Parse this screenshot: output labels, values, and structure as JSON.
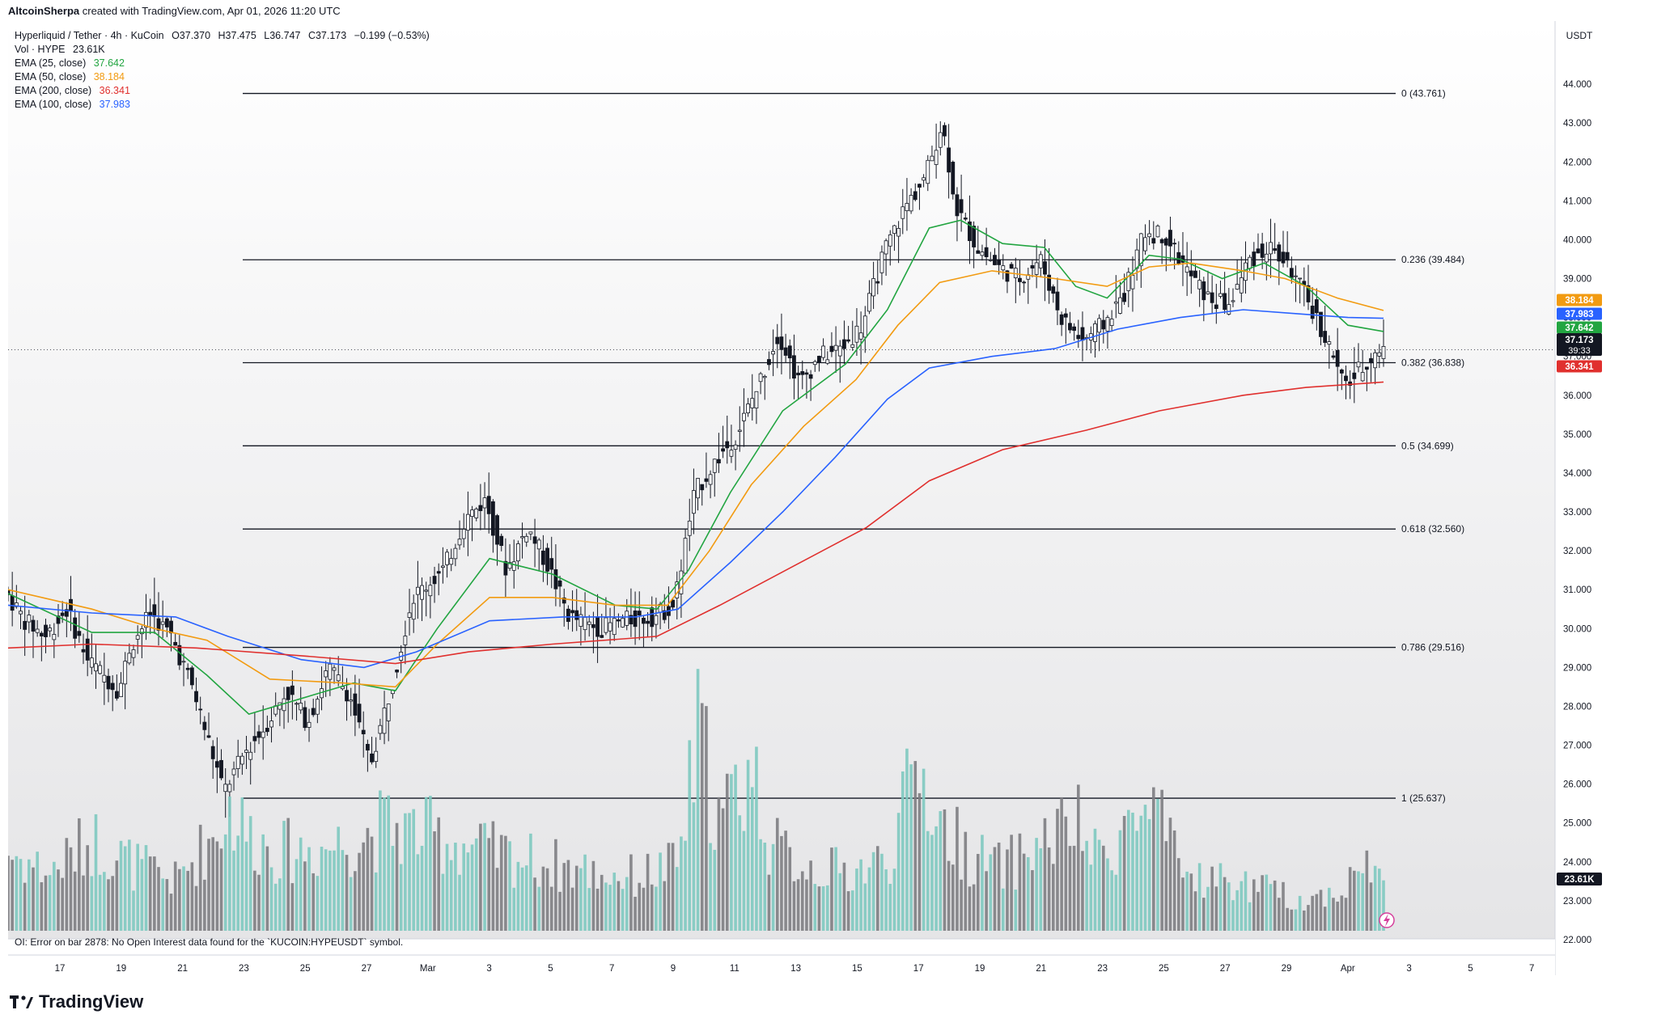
{
  "header": {
    "author": "AltcoinSherpa",
    "created_text": "created with TradingView.com, Apr 01, 2026 11:20 UTC"
  },
  "legend": {
    "symbol": "Hyperliquid / Tether · 4h · KuCoin",
    "ohlc": {
      "o": "O37.370",
      "h": "H37.475",
      "l": "L36.747",
      "c": "C37.173",
      "change": "−0.199 (−0.53%)"
    },
    "vol_label": "Vol · HYPE",
    "vol_value": "23.61K",
    "emas": [
      {
        "label": "EMA (25, close)",
        "value": "37.642",
        "color": "#22a541"
      },
      {
        "label": "EMA (50, close)",
        "value": "38.184",
        "color": "#f29b11"
      },
      {
        "label": "EMA (200, close)",
        "value": "36.341",
        "color": "#e0302e"
      },
      {
        "label": "EMA (100, close)",
        "value": "37.983",
        "color": "#2962ff"
      }
    ]
  },
  "oi_message": "OI: Error on bar 2878: No Open Interest data found for the `KUCOIN:HYPEUSDT` symbol.",
  "brand": "TradingView",
  "chart_data": {
    "type": "candlestick",
    "currency": "USDT",
    "ylim": [
      21.5,
      45.0
    ],
    "y_ticks": [
      "44.000",
      "43.000",
      "42.000",
      "41.000",
      "40.000",
      "39.000",
      "38.000",
      "37.000",
      "36.000",
      "35.000",
      "34.000",
      "33.000",
      "32.000",
      "31.000",
      "30.000",
      "29.000",
      "28.000",
      "27.000",
      "26.000",
      "25.000",
      "24.000",
      "23.000",
      "22.000"
    ],
    "x_ticks": [
      "17",
      "19",
      "21",
      "23",
      "25",
      "27",
      "Mar",
      "3",
      "5",
      "7",
      "9",
      "11",
      "13",
      "15",
      "17",
      "19",
      "21",
      "23",
      "25",
      "27",
      "29",
      "Apr",
      "3",
      "5",
      "7"
    ],
    "fib_levels": [
      {
        "label": "0 (43.761)",
        "value": 43.761
      },
      {
        "label": "0.236 (39.484)",
        "value": 39.484
      },
      {
        "label": "0.382 (36.838)",
        "value": 36.838
      },
      {
        "label": "0.5 (34.699)",
        "value": 34.699
      },
      {
        "label": "0.618 (32.560)",
        "value": 32.56
      },
      {
        "label": "0.786 (29.516)",
        "value": 29.516
      },
      {
        "label": "1 (25.637)",
        "value": 25.637
      }
    ],
    "price_tags": [
      {
        "text": "38.184",
        "value": 38.184,
        "color": "#f29b11"
      },
      {
        "text": "37.983",
        "value": 37.983,
        "color": "#2962ff"
      },
      {
        "text": "37.642",
        "value": 37.642,
        "color": "#22a541"
      },
      {
        "text": "37.173",
        "sub": "39:33",
        "value": 37.173,
        "color": "#131722"
      },
      {
        "text": "36.341",
        "value": 36.341,
        "color": "#e0302e"
      }
    ],
    "volume_tag": "23.61K",
    "price_path": [
      [
        0,
        31.0
      ],
      [
        10,
        30.2
      ],
      [
        20,
        29.8
      ],
      [
        30,
        30.5
      ],
      [
        40,
        29.2
      ],
      [
        55,
        28.4
      ],
      [
        60,
        29.5
      ],
      [
        70,
        30.4
      ],
      [
        80,
        29.8
      ],
      [
        90,
        28.5
      ],
      [
        105,
        25.8
      ],
      [
        115,
        26.8
      ],
      [
        125,
        27.5
      ],
      [
        135,
        28.4
      ],
      [
        145,
        27.6
      ],
      [
        155,
        29.0
      ],
      [
        165,
        28.3
      ],
      [
        175,
        26.5
      ],
      [
        185,
        28.5
      ],
      [
        195,
        30.8
      ],
      [
        210,
        31.5
      ],
      [
        220,
        32.8
      ],
      [
        230,
        33.3
      ],
      [
        240,
        31.5
      ],
      [
        250,
        32.6
      ],
      [
        260,
        31.6
      ],
      [
        270,
        30.3
      ],
      [
        285,
        30.0
      ],
      [
        295,
        30.2
      ],
      [
        310,
        30.3
      ],
      [
        320,
        30.6
      ],
      [
        330,
        33.5
      ],
      [
        340,
        34.3
      ],
      [
        350,
        35.0
      ],
      [
        360,
        36.2
      ],
      [
        370,
        37.6
      ],
      [
        380,
        36.3
      ],
      [
        390,
        37.0
      ],
      [
        400,
        37.2
      ],
      [
        410,
        37.8
      ],
      [
        420,
        39.6
      ],
      [
        430,
        40.8
      ],
      [
        440,
        41.6
      ],
      [
        448,
        43.0
      ],
      [
        455,
        40.8
      ],
      [
        465,
        39.8
      ],
      [
        475,
        39.3
      ],
      [
        485,
        39.0
      ],
      [
        495,
        39.5
      ],
      [
        505,
        38.0
      ],
      [
        515,
        37.4
      ],
      [
        525,
        37.8
      ],
      [
        535,
        38.6
      ],
      [
        545,
        40.2
      ],
      [
        555,
        40.1
      ],
      [
        565,
        39.2
      ],
      [
        575,
        38.5
      ],
      [
        585,
        38.3
      ],
      [
        595,
        39.5
      ],
      [
        605,
        39.8
      ],
      [
        615,
        39.2
      ],
      [
        625,
        38.2
      ],
      [
        635,
        37.0
      ],
      [
        640,
        36.2
      ],
      [
        650,
        36.8
      ],
      [
        657,
        37.17
      ]
    ],
    "volume_series": [
      [
        0,
        19
      ],
      [
        20,
        14
      ],
      [
        40,
        22
      ],
      [
        60,
        16
      ],
      [
        80,
        12
      ],
      [
        100,
        24
      ],
      [
        105,
        30
      ],
      [
        115,
        23
      ],
      [
        130,
        19
      ],
      [
        150,
        20
      ],
      [
        165,
        22
      ],
      [
        180,
        25
      ],
      [
        195,
        24
      ],
      [
        210,
        22
      ],
      [
        230,
        19
      ],
      [
        260,
        16
      ],
      [
        280,
        14
      ],
      [
        300,
        13
      ],
      [
        320,
        16
      ],
      [
        330,
        48
      ],
      [
        340,
        26
      ],
      [
        355,
        40
      ],
      [
        365,
        20
      ],
      [
        380,
        16
      ],
      [
        400,
        14
      ],
      [
        420,
        17
      ],
      [
        435,
        40
      ],
      [
        445,
        26
      ],
      [
        460,
        18
      ],
      [
        475,
        15
      ],
      [
        490,
        20
      ],
      [
        510,
        26
      ],
      [
        520,
        17
      ],
      [
        535,
        26
      ],
      [
        548,
        28
      ],
      [
        560,
        14
      ],
      [
        580,
        12
      ],
      [
        600,
        10
      ],
      [
        620,
        7
      ],
      [
        640,
        11
      ],
      [
        648,
        17
      ],
      [
        657,
        12
      ]
    ],
    "ema25": [
      [
        0,
        30.9
      ],
      [
        40,
        29.9
      ],
      [
        70,
        29.9
      ],
      [
        95,
        28.8
      ],
      [
        115,
        27.8
      ],
      [
        140,
        28.2
      ],
      [
        165,
        28.6
      ],
      [
        185,
        28.4
      ],
      [
        205,
        30.0
      ],
      [
        230,
        31.8
      ],
      [
        260,
        31.4
      ],
      [
        290,
        30.6
      ],
      [
        310,
        30.5
      ],
      [
        325,
        31.5
      ],
      [
        345,
        33.5
      ],
      [
        370,
        35.6
      ],
      [
        400,
        36.8
      ],
      [
        420,
        38.2
      ],
      [
        440,
        40.3
      ],
      [
        455,
        40.5
      ],
      [
        475,
        39.9
      ],
      [
        495,
        39.8
      ],
      [
        510,
        38.8
      ],
      [
        525,
        38.5
      ],
      [
        545,
        39.6
      ],
      [
        560,
        39.5
      ],
      [
        580,
        39.0
      ],
      [
        600,
        39.4
      ],
      [
        620,
        38.8
      ],
      [
        640,
        37.8
      ],
      [
        657,
        37.64
      ]
    ],
    "ema50": [
      [
        0,
        31.0
      ],
      [
        40,
        30.5
      ],
      [
        70,
        30.0
      ],
      [
        95,
        29.7
      ],
      [
        125,
        28.7
      ],
      [
        160,
        28.6
      ],
      [
        185,
        28.5
      ],
      [
        205,
        29.6
      ],
      [
        230,
        30.8
      ],
      [
        260,
        30.8
      ],
      [
        290,
        30.6
      ],
      [
        315,
        30.6
      ],
      [
        335,
        32.0
      ],
      [
        355,
        33.7
      ],
      [
        380,
        35.2
      ],
      [
        405,
        36.4
      ],
      [
        425,
        37.8
      ],
      [
        445,
        38.9
      ],
      [
        470,
        39.2
      ],
      [
        500,
        39.0
      ],
      [
        525,
        38.8
      ],
      [
        545,
        39.3
      ],
      [
        565,
        39.4
      ],
      [
        590,
        39.2
      ],
      [
        610,
        39.0
      ],
      [
        635,
        38.5
      ],
      [
        657,
        38.18
      ]
    ],
    "ema100": [
      [
        0,
        30.6
      ],
      [
        40,
        30.4
      ],
      [
        80,
        30.3
      ],
      [
        105,
        29.8
      ],
      [
        140,
        29.2
      ],
      [
        170,
        29.0
      ],
      [
        195,
        29.4
      ],
      [
        230,
        30.2
      ],
      [
        265,
        30.3
      ],
      [
        300,
        30.3
      ],
      [
        320,
        30.5
      ],
      [
        345,
        31.7
      ],
      [
        370,
        33.0
      ],
      [
        395,
        34.4
      ],
      [
        420,
        35.9
      ],
      [
        440,
        36.7
      ],
      [
        470,
        37.0
      ],
      [
        500,
        37.2
      ],
      [
        530,
        37.7
      ],
      [
        560,
        38.0
      ],
      [
        590,
        38.2
      ],
      [
        615,
        38.1
      ],
      [
        640,
        38.0
      ],
      [
        657,
        37.98
      ]
    ],
    "ema200": [
      [
        0,
        29.5
      ],
      [
        40,
        29.6
      ],
      [
        90,
        29.5
      ],
      [
        140,
        29.3
      ],
      [
        185,
        29.1
      ],
      [
        220,
        29.4
      ],
      [
        260,
        29.6
      ],
      [
        310,
        29.8
      ],
      [
        340,
        30.6
      ],
      [
        375,
        31.6
      ],
      [
        410,
        32.6
      ],
      [
        440,
        33.8
      ],
      [
        475,
        34.6
      ],
      [
        515,
        35.1
      ],
      [
        550,
        35.6
      ],
      [
        590,
        36.0
      ],
      [
        620,
        36.2
      ],
      [
        657,
        36.34
      ]
    ]
  }
}
